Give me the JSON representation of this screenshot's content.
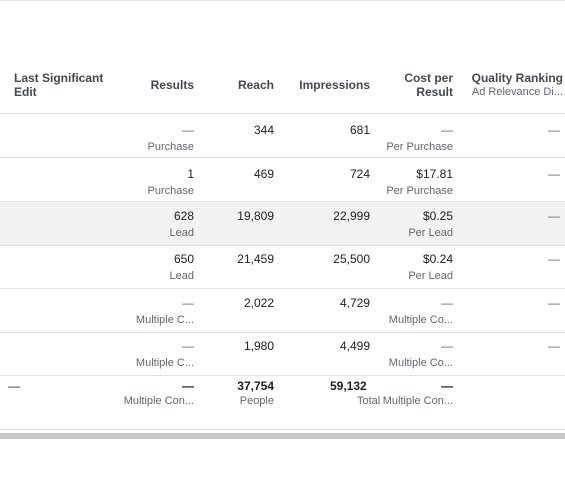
{
  "columns": {
    "last_edit": "Last Significant Edit",
    "results": "Results",
    "reach": "Reach",
    "impressions": "Impressions",
    "cost_per_result": "Cost per Result",
    "quality_ranking": "Quality Ranking",
    "quality_sub": "Ad Relevance Di..."
  },
  "rows": [
    {
      "results": "—",
      "results_sub": "Purchase",
      "reach": "344",
      "impressions": "681",
      "cost": "—",
      "cost_sub": "Per Purchase",
      "quality": "—"
    },
    {
      "results": "1",
      "results_sub": "Purchase",
      "reach": "469",
      "impressions": "724",
      "cost": "$17.81",
      "cost_sub": "Per Purchase",
      "quality": "—"
    },
    {
      "results": "628",
      "results_sub": "Lead",
      "reach": "19,809",
      "impressions": "22,999",
      "cost": "$0.25",
      "cost_sub": "Per Lead",
      "quality": "—"
    },
    {
      "results": "650",
      "results_sub": "Lead",
      "reach": "21,459",
      "impressions": "25,500",
      "cost": "$0.24",
      "cost_sub": "Per Lead",
      "quality": "—"
    },
    {
      "results": "—",
      "results_sub": "Multiple C...",
      "reach": "2,022",
      "impressions": "4,729",
      "cost": "—",
      "cost_sub": "Multiple Co...",
      "quality": "—"
    },
    {
      "results": "—",
      "results_sub": "Multiple C...",
      "reach": "1,980",
      "impressions": "4,499",
      "cost": "—",
      "cost_sub": "Multiple Co...",
      "quality": "—"
    }
  ],
  "total": {
    "last_edit": "—",
    "results": "—",
    "results_sub": "Multiple Con...",
    "reach": "37,754",
    "reach_sub": "People",
    "impressions": "59,132",
    "impressions_sub": "Total",
    "cost": "—",
    "cost_sub": "Multiple Con..."
  }
}
